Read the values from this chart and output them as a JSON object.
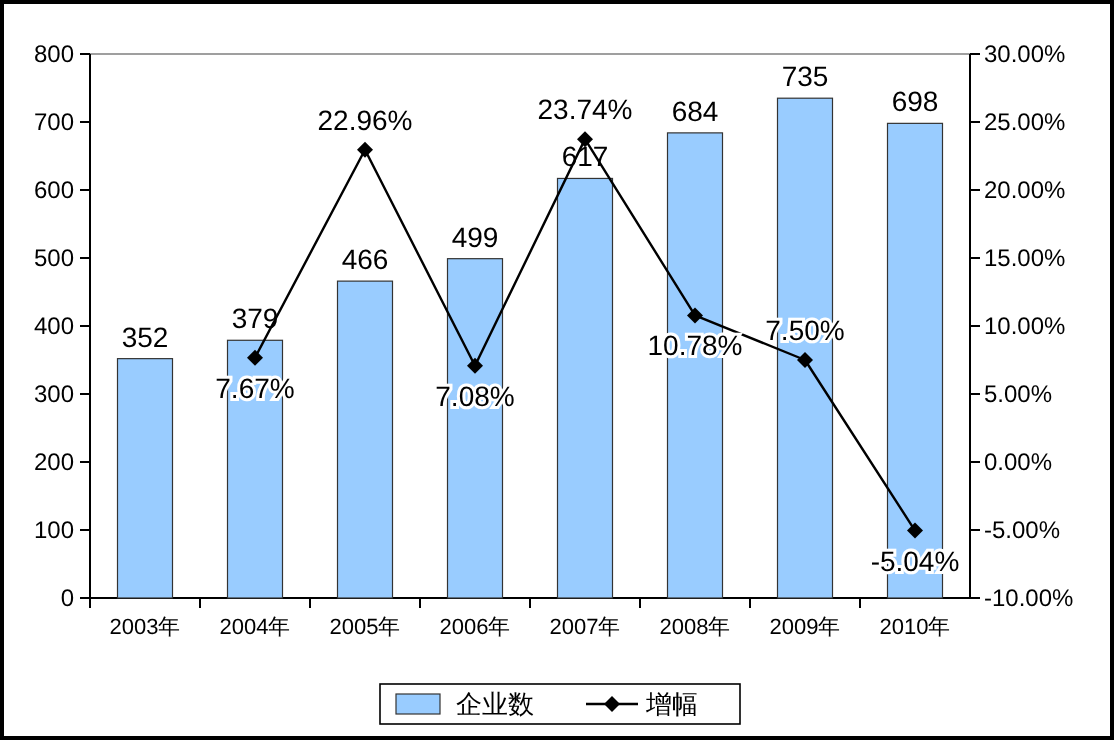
{
  "chart_data": {
    "type": "bar",
    "categories": [
      "2003年",
      "2004年",
      "2005年",
      "2006年",
      "2007年",
      "2008年",
      "2009年",
      "2010年"
    ],
    "series": [
      {
        "name": "企业数",
        "color": "#99ccff",
        "values": [
          352,
          379,
          466,
          499,
          617,
          684,
          735,
          698
        ],
        "value_labels": [
          "352",
          "379",
          "466",
          "499",
          "617",
          "684",
          "735",
          "698"
        ]
      },
      {
        "name": "增幅",
        "type": "line",
        "axis": "y2",
        "color": "#000000",
        "marker": "diamond",
        "values": [
          null,
          7.67,
          22.96,
          7.08,
          23.74,
          10.78,
          7.5,
          -5.04
        ],
        "value_labels": [
          null,
          "7.67%",
          "22.96%",
          "7.08%",
          "23.74%",
          "10.78%",
          "7.50%",
          "-5.04%"
        ]
      }
    ],
    "ylim": [
      0,
      800
    ],
    "yticks": [
      0,
      100,
      200,
      300,
      400,
      500,
      600,
      700,
      800
    ],
    "y2lim": [
      -10,
      30
    ],
    "y2ticks": [
      {
        "value": -10,
        "label": "-10.00%"
      },
      {
        "value": -5,
        "label": "-5.00%"
      },
      {
        "value": 0,
        "label": "0.00%"
      },
      {
        "value": 5,
        "label": "5.00%"
      },
      {
        "value": 10,
        "label": "10.00%"
      },
      {
        "value": 15,
        "label": "15.00%"
      },
      {
        "value": 20,
        "label": "20.00%"
      },
      {
        "value": 25,
        "label": "25.00%"
      },
      {
        "value": 30,
        "label": "30.00%"
      }
    ],
    "legend": "bottom"
  }
}
